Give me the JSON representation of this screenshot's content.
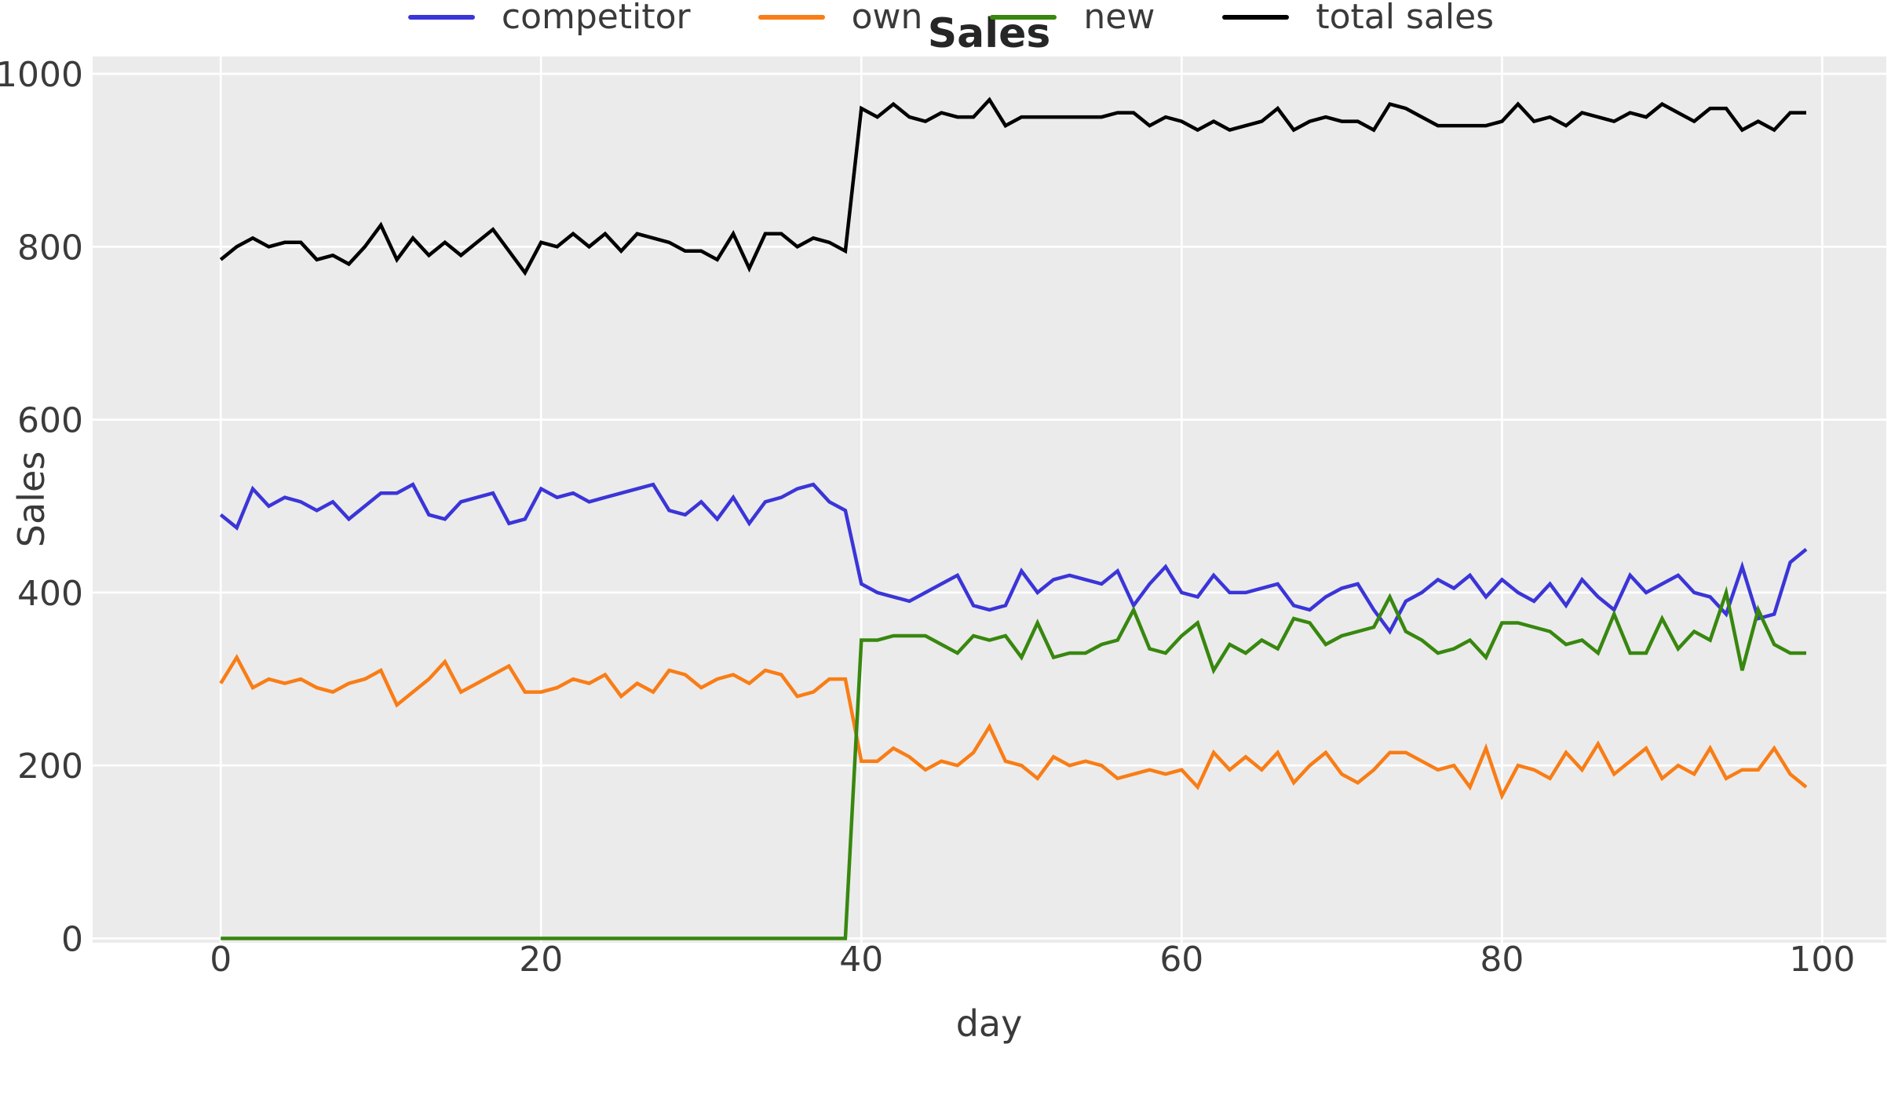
{
  "figure": {
    "title": "Sales",
    "background": "#ffffff",
    "plot_background": "#ebebeb",
    "grid_color": "#ffffff",
    "text_color": "#3a3a3a"
  },
  "chart_data": {
    "type": "line",
    "title": "Sales",
    "xlabel": "day",
    "ylabel": "Sales",
    "grid": true,
    "legend_position": "bottom",
    "xlim": [
      -8,
      104
    ],
    "ylim": [
      -5,
      1020
    ],
    "xticks": [
      0,
      20,
      40,
      60,
      80,
      100
    ],
    "yticks": [
      0,
      200,
      400,
      600,
      800,
      1000
    ],
    "x": [
      0,
      1,
      2,
      3,
      4,
      5,
      6,
      7,
      8,
      9,
      10,
      11,
      12,
      13,
      14,
      15,
      16,
      17,
      18,
      19,
      20,
      21,
      22,
      23,
      24,
      25,
      26,
      27,
      28,
      29,
      30,
      31,
      32,
      33,
      34,
      35,
      36,
      37,
      38,
      39,
      40,
      41,
      42,
      43,
      44,
      45,
      46,
      47,
      48,
      49,
      50,
      51,
      52,
      53,
      54,
      55,
      56,
      57,
      58,
      59,
      60,
      61,
      62,
      63,
      64,
      65,
      66,
      67,
      68,
      69,
      70,
      71,
      72,
      73,
      74,
      75,
      76,
      77,
      78,
      79,
      80,
      81,
      82,
      83,
      84,
      85,
      86,
      87,
      88,
      89,
      90,
      91,
      92,
      93,
      94,
      95,
      96,
      97,
      98,
      99
    ],
    "series": [
      {
        "name": "competitor",
        "color": "#3b35d8",
        "values": [
          490,
          475,
          520,
          500,
          510,
          505,
          495,
          505,
          485,
          500,
          515,
          515,
          525,
          490,
          485,
          505,
          510,
          515,
          480,
          485,
          520,
          510,
          515,
          505,
          510,
          515,
          520,
          525,
          495,
          490,
          505,
          485,
          510,
          480,
          505,
          510,
          520,
          525,
          505,
          495,
          410,
          400,
          395,
          390,
          400,
          410,
          420,
          385,
          380,
          385,
          425,
          400,
          415,
          420,
          415,
          410,
          425,
          385,
          410,
          430,
          400,
          395,
          420,
          400,
          400,
          405,
          410,
          385,
          380,
          395,
          405,
          410,
          380,
          355,
          390,
          400,
          415,
          405,
          420,
          395,
          415,
          400,
          390,
          410,
          385,
          415,
          395,
          380,
          420,
          400,
          410,
          420,
          400,
          395,
          375,
          430,
          370,
          375,
          435,
          450
        ]
      },
      {
        "name": "own",
        "color": "#f97d16",
        "values": [
          295,
          325,
          290,
          300,
          295,
          300,
          290,
          285,
          295,
          300,
          310,
          270,
          285,
          300,
          320,
          285,
          295,
          305,
          315,
          285,
          285,
          290,
          300,
          295,
          305,
          280,
          295,
          285,
          310,
          305,
          290,
          300,
          305,
          295,
          310,
          305,
          280,
          285,
          300,
          300,
          205,
          205,
          220,
          210,
          195,
          205,
          200,
          215,
          245,
          205,
          200,
          185,
          210,
          200,
          205,
          200,
          185,
          190,
          195,
          190,
          195,
          175,
          215,
          195,
          210,
          195,
          215,
          180,
          200,
          215,
          190,
          180,
          195,
          215,
          215,
          205,
          195,
          200,
          175,
          220,
          165,
          200,
          195,
          185,
          215,
          195,
          225,
          190,
          205,
          220,
          185,
          200,
          190,
          220,
          185,
          195,
          195,
          220,
          190,
          175
        ]
      },
      {
        "name": "new",
        "color": "#38870f",
        "values": [
          0,
          0,
          0,
          0,
          0,
          0,
          0,
          0,
          0,
          0,
          0,
          0,
          0,
          0,
          0,
          0,
          0,
          0,
          0,
          0,
          0,
          0,
          0,
          0,
          0,
          0,
          0,
          0,
          0,
          0,
          0,
          0,
          0,
          0,
          0,
          0,
          0,
          0,
          0,
          0,
          345,
          345,
          350,
          350,
          350,
          340,
          330,
          350,
          345,
          350,
          325,
          365,
          325,
          330,
          330,
          340,
          345,
          380,
          335,
          330,
          350,
          365,
          310,
          340,
          330,
          345,
          335,
          370,
          365,
          340,
          350,
          355,
          360,
          395,
          355,
          345,
          330,
          335,
          345,
          325,
          365,
          365,
          360,
          355,
          340,
          345,
          330,
          375,
          330,
          330,
          370,
          335,
          355,
          345,
          400,
          310,
          380,
          340,
          330,
          330
        ]
      },
      {
        "name": "total sales",
        "color": "#000000",
        "values": [
          785,
          800,
          810,
          800,
          805,
          805,
          785,
          790,
          780,
          800,
          825,
          785,
          810,
          790,
          805,
          790,
          805,
          820,
          795,
          770,
          805,
          800,
          815,
          800,
          815,
          795,
          815,
          810,
          805,
          795,
          795,
          785,
          815,
          775,
          815,
          815,
          800,
          810,
          805,
          795,
          960,
          950,
          965,
          950,
          945,
          955,
          950,
          950,
          970,
          940,
          950,
          950,
          950,
          950,
          950,
          950,
          955,
          955,
          940,
          950,
          945,
          935,
          945,
          935,
          940,
          945,
          960,
          935,
          945,
          950,
          945,
          945,
          935,
          965,
          960,
          950,
          940,
          940,
          940,
          940,
          945,
          965,
          945,
          950,
          940,
          955,
          950,
          945,
          955,
          950,
          965,
          955,
          945,
          960,
          960,
          935,
          945,
          935,
          955,
          955
        ]
      }
    ]
  },
  "legend": {
    "items": [
      {
        "label": "competitor",
        "color": "#3b35d8"
      },
      {
        "label": "own",
        "color": "#f97d16"
      },
      {
        "label": "new",
        "color": "#38870f"
      },
      {
        "label": "total sales",
        "color": "#000000"
      }
    ]
  }
}
